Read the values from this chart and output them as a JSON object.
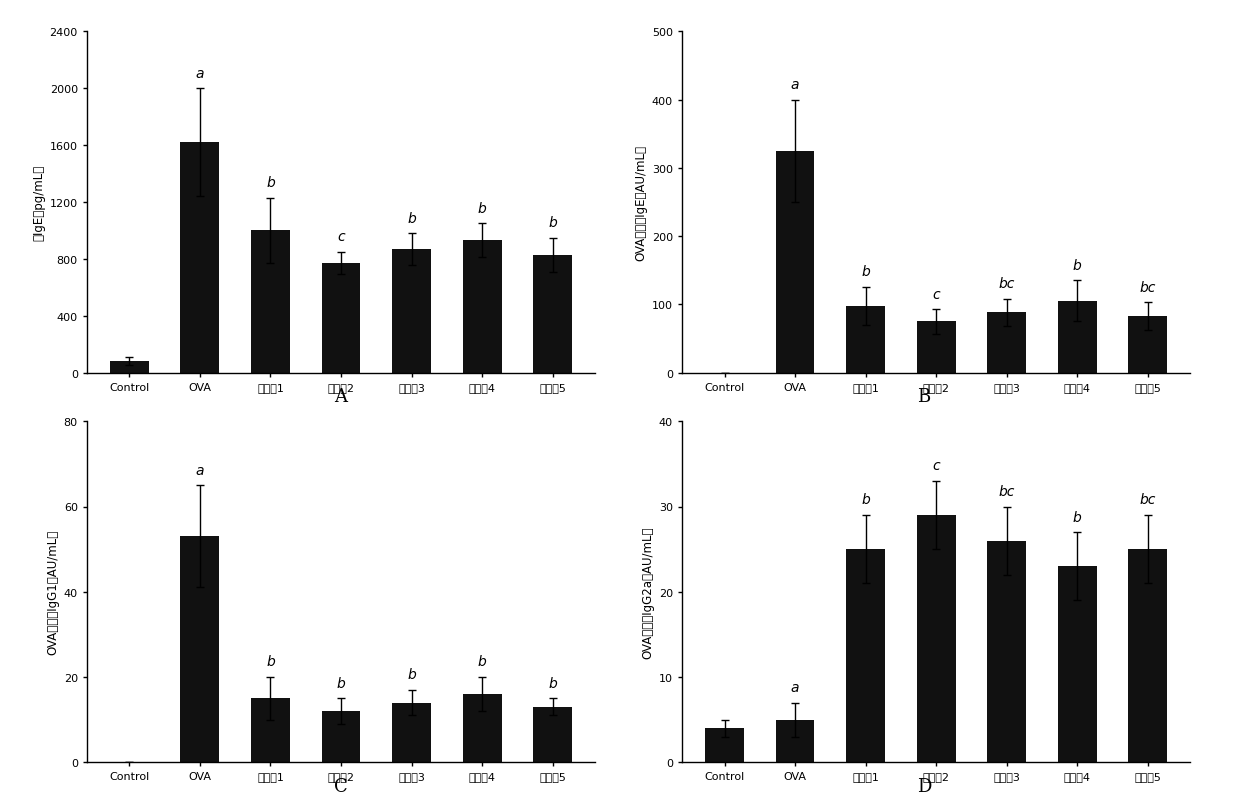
{
  "subplots": [
    {
      "label": "A",
      "ylabel": "总IgE（pg/mL）",
      "ylim": [
        0,
        2400
      ],
      "yticks": [
        0,
        400,
        800,
        1200,
        1600,
        2000,
        2400
      ],
      "categories": [
        "Control",
        "OVA",
        "实施例1",
        "实施例2",
        "实施例3",
        "实施例4",
        "实施例5"
      ],
      "values": [
        80,
        1620,
        1000,
        770,
        870,
        930,
        830
      ],
      "errors": [
        30,
        380,
        230,
        80,
        110,
        120,
        120
      ],
      "sig_labels": [
        "",
        "a",
        "b",
        "c",
        "b",
        "b",
        "b"
      ]
    },
    {
      "label": "B",
      "ylabel": "OVA特异性IgE（AU/mL）",
      "ylim": [
        0,
        500
      ],
      "yticks": [
        0,
        100,
        200,
        300,
        400,
        500
      ],
      "categories": [
        "Control",
        "OVA",
        "实施例1",
        "实施例2",
        "实施例3",
        "实施例4",
        "实施例5"
      ],
      "values": [
        0,
        325,
        98,
        75,
        88,
        105,
        83
      ],
      "errors": [
        0,
        75,
        28,
        18,
        20,
        30,
        20
      ],
      "sig_labels": [
        "",
        "a",
        "b",
        "c",
        "bc",
        "b",
        "bc"
      ]
    },
    {
      "label": "C",
      "ylabel": "OVA特异性IgG1（AU/mL）",
      "ylim": [
        0,
        80
      ],
      "yticks": [
        0,
        20,
        40,
        60,
        80
      ],
      "categories": [
        "Control",
        "OVA",
        "实施例1",
        "实施例2",
        "实施例3",
        "实施例4",
        "实施例5"
      ],
      "values": [
        0,
        53,
        15,
        12,
        14,
        16,
        13
      ],
      "errors": [
        0,
        12,
        5,
        3,
        3,
        4,
        2
      ],
      "sig_labels": [
        "",
        "a",
        "b",
        "b",
        "b",
        "b",
        "b"
      ]
    },
    {
      "label": "D",
      "ylabel": "OVA特异性IgG2a（AU/mL）",
      "ylim": [
        0,
        40
      ],
      "yticks": [
        0,
        10,
        20,
        30,
        40
      ],
      "categories": [
        "Control",
        "OVA",
        "实施例1",
        "实施例2",
        "实施例3",
        "实施例4",
        "实施例5"
      ],
      "values": [
        4,
        5,
        25,
        29,
        26,
        23,
        25
      ],
      "errors": [
        1,
        2,
        4,
        4,
        4,
        4,
        4
      ],
      "sig_labels": [
        "",
        "a",
        "b",
        "c",
        "bc",
        "b",
        "bc"
      ]
    }
  ],
  "bar_color": "#111111",
  "bar_width": 0.55,
  "capsize": 3,
  "background_color": "#ffffff",
  "sig_fontsize": 10,
  "tick_fontsize": 8,
  "ylabel_fontsize": 8.5,
  "letter_fontsize": 13
}
